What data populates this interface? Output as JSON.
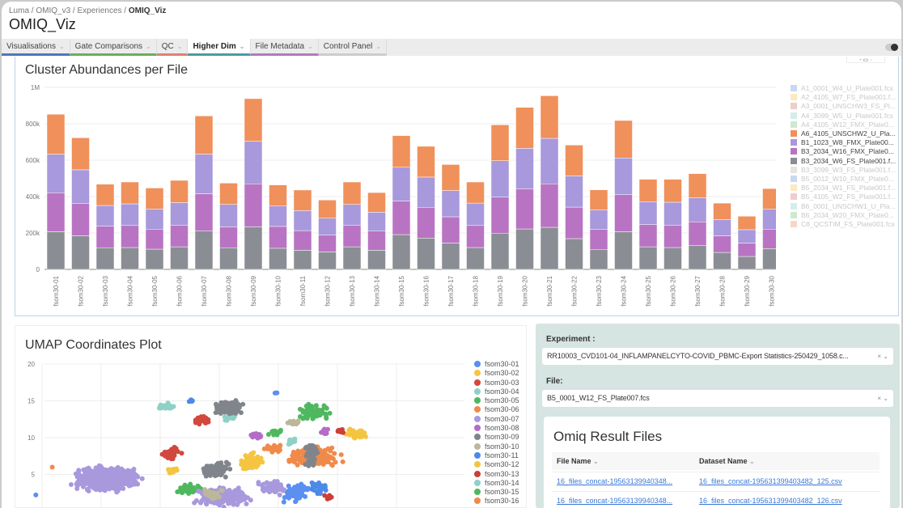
{
  "breadcrumb": [
    "Luma",
    "OMIQ_v3",
    "Experiences",
    "OMIQ_Viz"
  ],
  "page_title": "OMIQ_Viz",
  "tabs": [
    {
      "label": "Visualisations",
      "color": "#4a78c0",
      "active": false
    },
    {
      "label": "Gate Comparisons",
      "color": "#6aae5a",
      "active": false
    },
    {
      "label": "QC",
      "color": "#e07f78",
      "active": false
    },
    {
      "label": "Higher Dim",
      "color": "#4a9ca0",
      "active": true
    },
    {
      "label": "File Metadata",
      "color": "#b07cc0",
      "active": false
    },
    {
      "label": "Control Panel",
      "color": "#cccccc",
      "active": false
    }
  ],
  "icons": {
    "tab_chevron": "chevron-down-icon",
    "toggle": "toggle-switch-icon",
    "clear": "close-icon",
    "dropdown": "chevron-down-icon"
  },
  "chart_data": [
    {
      "type": "bar",
      "stacked": true,
      "title": "Cluster Abundances per File",
      "ylim": [
        0,
        1000000
      ],
      "yticks": [
        "0",
        "200k",
        "400k",
        "600k",
        "800k",
        "1M"
      ],
      "grid": true,
      "legend_placement": "right",
      "categories": [
        "fsom30-01",
        "fsom30-02",
        "fsom30-03",
        "fsom30-04",
        "fsom30-05",
        "fsom30-06",
        "fsom30-07",
        "fsom30-08",
        "fsom30-09",
        "fsom30-10",
        "fsom30-11",
        "fsom30-12",
        "fsom30-13",
        "fsom30-14",
        "fsom30-15",
        "fsom30-16",
        "fsom30-17",
        "fsom30-18",
        "fsom30-19",
        "fsom30-20",
        "fsom30-21",
        "fsom30-22",
        "fsom30-23",
        "fsom30-24",
        "fsom30-25",
        "fsom30-26",
        "fsom30-27",
        "fsom30-28",
        "fsom30-29",
        "fsom30-30"
      ],
      "legend": [
        {
          "name": "A1_0001_W4_U_Plate001.fcs",
          "color": "#c9d8f2",
          "active": false
        },
        {
          "name": "A2_4105_W7_FS_Plate001.f...",
          "color": "#fbe9bf",
          "active": false
        },
        {
          "name": "A3_0001_UNSCHW3_FS_Pl...",
          "color": "#f0cccc",
          "active": false
        },
        {
          "name": "A4_3099_W5_U_Plate001.fcs",
          "color": "#d3eeea",
          "active": false
        },
        {
          "name": "A4_4105_W12_FMX_Plate0...",
          "color": "#cde9d0",
          "active": false
        },
        {
          "name": "A6_4105_UNSCHW2_U_Pla...",
          "color": "#f0905a",
          "active": true
        },
        {
          "name": "B1_1023_W8_FMX_Plate00...",
          "color": "#a898dc",
          "active": true
        },
        {
          "name": "B3_2034_W16_FMX_Plate0...",
          "color": "#b874c2",
          "active": true
        },
        {
          "name": "B3_2034_W6_FS_Plate001.f...",
          "color": "#8a8e94",
          "active": true
        },
        {
          "name": "B3_3099_W3_FS_Plate001.f...",
          "color": "#e6e4dc",
          "active": false
        },
        {
          "name": "B5_0012_W10_FMX_Plate0...",
          "color": "#c9d8f2",
          "active": false
        },
        {
          "name": "B5_2034_W1_FS_Plate001.f...",
          "color": "#fbe9bf",
          "active": false
        },
        {
          "name": "B5_4105_W2_FS_Plate001.f...",
          "color": "#f0cccc",
          "active": false
        },
        {
          "name": "B6_0001_UNSCHW1_U_Pla...",
          "color": "#d3eeea",
          "active": false
        },
        {
          "name": "B6_2034_W20_FMX_Plate0...",
          "color": "#cde9d0",
          "active": false
        },
        {
          "name": "C8_QCSTIM_FS_Plate001.fcs",
          "color": "#f8d6c6",
          "active": false
        }
      ],
      "series": [
        {
          "name": "B3_2034_W6_FS_Plate001.f...",
          "color": "#8a8e94",
          "values": [
            207000,
            185000,
            119000,
            120000,
            111000,
            124000,
            210000,
            119000,
            234000,
            116000,
            105000,
            96000,
            124000,
            105000,
            191000,
            172000,
            145000,
            120000,
            199000,
            222000,
            231000,
            169000,
            110000,
            207000,
            124000,
            120000,
            132000,
            93000,
            71000,
            114000
          ]
        },
        {
          "name": "B3_2034_W16_FMX_Plate0...",
          "color": "#b874c2",
          "values": [
            214000,
            178000,
            118000,
            121000,
            110000,
            119000,
            206000,
            115000,
            236000,
            120000,
            108000,
            92000,
            119000,
            105000,
            184000,
            169000,
            144000,
            121000,
            198000,
            221000,
            239000,
            173000,
            109000,
            203000,
            122000,
            123000,
            129000,
            91000,
            73000,
            107000
          ]
        },
        {
          "name": "B1_1023_W8_FMX_Plate00...",
          "color": "#a898dc",
          "values": [
            212000,
            184000,
            114000,
            119000,
            111000,
            124000,
            217000,
            123000,
            234000,
            112000,
            110000,
            93000,
            114000,
            104000,
            186000,
            166000,
            144000,
            123000,
            200000,
            222000,
            250000,
            171000,
            107000,
            202000,
            126000,
            126000,
            132000,
            89000,
            74000,
            111000
          ]
        },
        {
          "name": "A6_4105_UNSCHW2_U_Pla...",
          "color": "#f0905a",
          "values": [
            219000,
            176000,
            117000,
            120000,
            115000,
            122000,
            210000,
            117000,
            234000,
            116000,
            113000,
            100000,
            123000,
            108000,
            174000,
            169000,
            143000,
            116000,
            197000,
            225000,
            234000,
            170000,
            111000,
            206000,
            123000,
            126000,
            133000,
            91000,
            74000,
            112000
          ]
        }
      ]
    },
    {
      "type": "scatter",
      "title": "UMAP Coordinates Plot",
      "ylim": [
        0,
        20
      ],
      "yticks": [
        "5",
        "10",
        "15",
        "20"
      ],
      "grid": true,
      "legend_placement": "right",
      "series": [
        {
          "name": "fsom30-01",
          "color": "#5b8ff0",
          "clusters": [
            [
              21.5,
              2.5,
              1.2,
              1.4,
              70
            ],
            [
              19.8,
              16.1,
              0.2,
              0.1,
              3
            ],
            [
              -0.5,
              2.2,
              0.1,
              0.1,
              1
            ]
          ]
        },
        {
          "name": "fsom30-02",
          "color": "#f5c542",
          "clusters": [
            [
              17.8,
              6.7,
              1.2,
              1.6,
              70
            ],
            [
              26.6,
              10.5,
              1.0,
              0.8,
              35
            ]
          ]
        },
        {
          "name": "fsom30-03",
          "color": "#d2483c",
          "clusters": [
            [
              13.5,
              12.4,
              0.9,
              0.7,
              40
            ],
            [
              11,
              7.8,
              1.0,
              1.0,
              40
            ]
          ]
        },
        {
          "name": "fsom30-04",
          "color": "#8fd1c6",
          "clusters": [
            [
              10.4,
              14.2,
              0.9,
              0.6,
              35
            ],
            [
              15.8,
              12.6,
              0.9,
              0.4,
              14
            ]
          ]
        },
        {
          "name": "fsom30-05",
          "color": "#4fb85f",
          "clusters": [
            [
              23,
              13.5,
              1.7,
              1.3,
              60
            ],
            [
              12.5,
              2.9,
              1.4,
              0.9,
              55
            ]
          ]
        },
        {
          "name": "fsom30-06",
          "color": "#f08a4b",
          "clusters": [
            [
              23,
              7.4,
              2.6,
              1.5,
              220
            ],
            [
              0.9,
              6.0,
              0.05,
              0.05,
              1
            ]
          ]
        },
        {
          "name": "fsom30-07",
          "color": "#a899dd",
          "clusters": [
            [
              5.4,
              4.4,
              3.3,
              1.9,
              700
            ],
            [
              15.3,
              2.0,
              2.6,
              1.5,
              260
            ],
            [
              19.5,
              3.2,
              1.3,
              1.3,
              60
            ]
          ]
        },
        {
          "name": "fsom30-08",
          "color": "#b56cc6",
          "clusters": [
            [
              18.2,
              10.3,
              0.6,
              0.5,
              20
            ],
            [
              24,
              10.8,
              0.6,
              0.6,
              15
            ]
          ]
        },
        {
          "name": "fsom30-09",
          "color": "#80858c",
          "clusters": [
            [
              15.8,
              14.1,
              1.4,
              1.1,
              150
            ],
            [
              14.7,
              5.7,
              1.4,
              1.2,
              90
            ],
            [
              22.8,
              7.6,
              0.7,
              2.2,
              60
            ]
          ]
        },
        {
          "name": "fsom30-10",
          "color": "#bdb79a",
          "clusters": [
            [
              21.3,
              12,
              0.8,
              0.4,
              20
            ],
            [
              14.5,
              2.4,
              1.2,
              1.0,
              20
            ]
          ]
        },
        {
          "name": "fsom30-11",
          "color": "#4d8ae8",
          "clusters": [
            [
              23.5,
              3.2,
              0.9,
              1.0,
              30
            ],
            [
              12.7,
              15,
              0.4,
              0.3,
              6
            ]
          ]
        },
        {
          "name": "fsom30-12",
          "color": "#f5c542",
          "clusters": [
            [
              11,
              5.5,
              0.7,
              0.5,
              20
            ]
          ]
        },
        {
          "name": "fsom30-13",
          "color": "#cc3f3a",
          "clusters": [
            [
              25.3,
              10.9,
              0.6,
              0.4,
              14
            ],
            [
              24.3,
              1.9,
              0.4,
              0.5,
              8
            ]
          ]
        },
        {
          "name": "fsom30-14",
          "color": "#8fd1c6",
          "clusters": [
            [
              21,
              9.5,
              0.6,
              0.6,
              10
            ]
          ]
        },
        {
          "name": "fsom30-15",
          "color": "#4fb85f",
          "clusters": [
            [
              19.7,
              10.8,
              0.8,
              0.6,
              25
            ]
          ]
        },
        {
          "name": "fsom30-16",
          "color": "#f08a4b",
          "clusters": [
            [
              19.5,
              8.6,
              0.8,
              0.8,
              30
            ]
          ]
        }
      ]
    }
  ],
  "controls": {
    "experiment_label": "Experiment :",
    "experiment_value": "RR10003_CVD101-04_INFLAMPANELCYTO-COVID_PBMC-Export Statistics-250429_1058.c...",
    "file_label": "File:",
    "file_value": "B5_0001_W12_FS_Plate007.fcs",
    "clear_glyph": "×",
    "dropdown_glyph": "⌄"
  },
  "results": {
    "title": "Omiq Result Files",
    "columns": [
      "File Name",
      "Dataset Name"
    ],
    "rows": [
      [
        "16_files_concat-19563139940348...",
        "16_files_concat-195631399403482_125.csv"
      ],
      [
        "16_files_concat-19563139940348...",
        "16_files_concat-195631399403482_126.csv"
      ]
    ]
  }
}
